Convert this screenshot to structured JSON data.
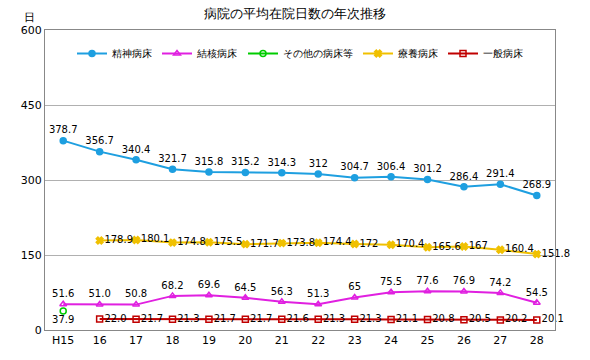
{
  "chart_data": {
    "type": "line",
    "title": "病院の平均在院日数の年次推移",
    "y_label": "日",
    "categories": [
      "H15",
      "16",
      "17",
      "18",
      "19",
      "20",
      "21",
      "22",
      "23",
      "24",
      "25",
      "26",
      "27",
      "28"
    ],
    "ylim": [
      0,
      600
    ],
    "yticks": [
      0,
      150,
      300,
      450,
      600
    ],
    "grid": true,
    "legend": "top",
    "data_labels": true,
    "series": [
      {
        "name": "精神病床",
        "color": "#1E9FE0",
        "marker": "circle",
        "values": [
          378.7,
          356.7,
          340.4,
          321.7,
          315.8,
          315.2,
          314.3,
          312,
          304.7,
          306.4,
          301.2,
          286.4,
          291.4,
          268.9
        ],
        "value_labels": [
          "378.7",
          "356.7",
          "340.4",
          "321.7",
          "315.8",
          "315.2",
          "314.3",
          "312",
          "304.7",
          "306.4",
          "301.2",
          "286.4",
          "291.4",
          "268.9"
        ]
      },
      {
        "name": "結核病床",
        "color": "#E020E0",
        "marker": "triangle-up-open",
        "values": [
          51.6,
          51.0,
          50.8,
          68.2,
          69.6,
          64.5,
          56.3,
          51.3,
          65,
          75.5,
          77.6,
          76.9,
          74.2,
          54.5
        ],
        "value_labels": [
          "51.6",
          "51.0",
          "50.8",
          "68.2",
          "69.6",
          "64.5",
          "56.3",
          "51.3",
          "65",
          "75.5",
          "77.6",
          "76.9",
          "74.2",
          "54.5"
        ]
      },
      {
        "name": "その他の病床等",
        "color": "#00CC00",
        "marker": "circle-open",
        "values": [
          37.9,
          null,
          null,
          null,
          null,
          null,
          null,
          null,
          null,
          null,
          null,
          null,
          null,
          null
        ],
        "value_labels": [
          "37.9",
          null,
          null,
          null,
          null,
          null,
          null,
          null,
          null,
          null,
          null,
          null,
          null,
          null
        ]
      },
      {
        "name": "療養病床",
        "color": "#F0C000",
        "marker": "x",
        "values": [
          null,
          178.9,
          180.1,
          174.8,
          175.5,
          171.7,
          173.8,
          174.4,
          172,
          170.4,
          165.6,
          167,
          160.4,
          151.8
        ],
        "value_labels": [
          null,
          "178.9",
          "180.1",
          "174.8",
          "175.5",
          "171.7",
          "173.8",
          "174.4",
          "172",
          "170.4",
          "165.6",
          "167",
          "160.4",
          "151.8"
        ]
      },
      {
        "name": "一般病床",
        "color": "#C00000",
        "marker": "square-open",
        "values": [
          null,
          22.0,
          21.7,
          21.3,
          21.7,
          21.7,
          21.6,
          21.3,
          21.3,
          21.1,
          20.8,
          20.5,
          20.2,
          20.1
        ],
        "value_labels": [
          null,
          "22.0",
          "21.7",
          "21.3",
          "21.7",
          "21.7",
          "21.6",
          "21.3",
          "21.3",
          "21.1",
          "20.8",
          "20.5",
          "20.2",
          "20.1"
        ]
      }
    ]
  }
}
